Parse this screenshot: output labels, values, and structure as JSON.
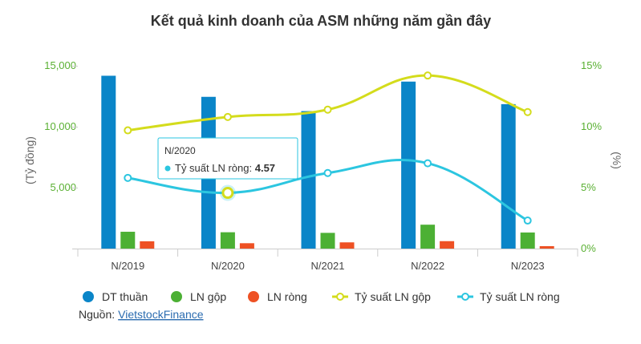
{
  "chart_data": {
    "type": "bar",
    "title": "Kết quả kinh doanh của ASM những năm gần đây",
    "categories": [
      "N/2019",
      "N/2020",
      "N/2021",
      "N/2022",
      "N/2023"
    ],
    "y_left": {
      "label": "(Tỷ đồng)",
      "ticks": [
        "15,000",
        "10,000",
        "5,000",
        "-"
      ],
      "tick_values": [
        15000,
        10000,
        5000,
        0
      ],
      "ylim": [
        0,
        15000
      ]
    },
    "y_right": {
      "label": "(%)",
      "ticks": [
        "15%",
        "10%",
        "5%",
        "0%"
      ],
      "tick_values": [
        15,
        10,
        5,
        0
      ],
      "ylim": [
        0,
        15
      ]
    },
    "series": [
      {
        "name": "DT thuần",
        "kind": "bar",
        "axis": "left",
        "color": "#0a85c8",
        "values": [
          14180,
          12450,
          11280,
          13700,
          11850
        ]
      },
      {
        "name": "LN gộp",
        "kind": "bar",
        "axis": "left",
        "color": "#4cb034",
        "values": [
          1380,
          1340,
          1290,
          1960,
          1320
        ]
      },
      {
        "name": "LN ròng",
        "kind": "bar",
        "axis": "left",
        "color": "#ee5124",
        "values": [
          600,
          440,
          510,
          610,
          200
        ]
      },
      {
        "name": "Tỷ suất LN gộp",
        "kind": "line",
        "axis": "right",
        "color": "#d4dc1c",
        "values": [
          9.7,
          10.8,
          11.4,
          14.2,
          11.2
        ]
      },
      {
        "name": "Tỷ suất LN ròng",
        "kind": "line",
        "axis": "right",
        "color": "#2cc6e0",
        "values": [
          5.8,
          4.57,
          6.2,
          7.0,
          2.3
        ]
      }
    ],
    "tooltip": {
      "category": "N/2020",
      "series": "Tỷ suất LN ròng",
      "value": "4.57"
    },
    "legend_position": "bottom",
    "grid": false
  },
  "source": {
    "label": "Nguồn:",
    "link_text": "VietstockFinance"
  }
}
